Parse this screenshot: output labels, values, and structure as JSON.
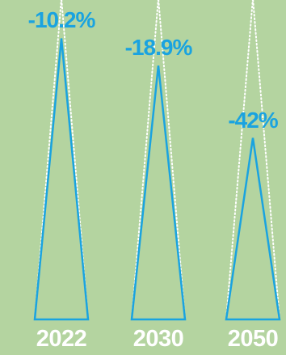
{
  "colors": {
    "background": "#b4d4a0",
    "accent": "#1aa3e0",
    "dotted": "#ffffff",
    "year_text": "#ffffff"
  },
  "chart_data": {
    "type": "bar",
    "categories": [
      "2022",
      "2030",
      "2050"
    ],
    "values": [
      -10.2,
      -18.9,
      -42
    ],
    "value_labels": [
      "-10.2%",
      "-18.9%",
      "-42%"
    ],
    "ylim": [
      -100,
      0
    ]
  }
}
